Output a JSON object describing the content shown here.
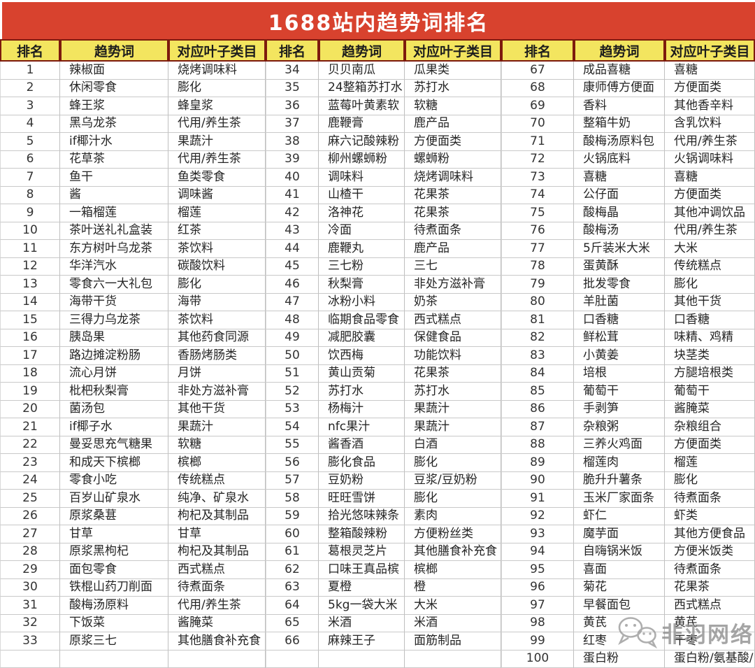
{
  "title": "1688站内趋势词排名",
  "watermark": "非羽网络",
  "colors": {
    "banner_red": "#d8422e",
    "header_yellow": "#f3e55f",
    "header_border": "#7d1a0d",
    "grid_line": "#c9c9c9"
  },
  "table": {
    "header": {
      "rank": "排名",
      "word": "趋势词",
      "category": "对应叶子类目"
    },
    "row_count": 34,
    "groups": [
      {
        "rows": [
          {
            "rank": "1",
            "word": "辣椒面",
            "category": "烧烤调味料"
          },
          {
            "rank": "2",
            "word": "休闲零食",
            "category": "膨化"
          },
          {
            "rank": "3",
            "word": "蜂王浆",
            "category": "蜂皇浆"
          },
          {
            "rank": "4",
            "word": "黑乌龙茶",
            "category": "代用/养生茶"
          },
          {
            "rank": "5",
            "word": "if椰汁水",
            "category": "果蔬汁"
          },
          {
            "rank": "6",
            "word": "花草茶",
            "category": "代用/养生茶"
          },
          {
            "rank": "7",
            "word": "鱼干",
            "category": "鱼类零食"
          },
          {
            "rank": "8",
            "word": "酱",
            "category": "调味酱"
          },
          {
            "rank": "9",
            "word": "一箱榴莲",
            "category": "榴莲"
          },
          {
            "rank": "10",
            "word": "茶叶送礼礼盒装",
            "category": "红茶"
          },
          {
            "rank": "11",
            "word": "东方树叶乌龙茶",
            "category": "茶饮料"
          },
          {
            "rank": "12",
            "word": "华洋汽水",
            "category": "碳酸饮料"
          },
          {
            "rank": "13",
            "word": "零食六一大礼包",
            "category": "膨化"
          },
          {
            "rank": "14",
            "word": "海带干货",
            "category": "海带"
          },
          {
            "rank": "15",
            "word": "三得力乌龙茶",
            "category": "茶饮料"
          },
          {
            "rank": "16",
            "word": "胰岛果",
            "category": "其他药食同源"
          },
          {
            "rank": "17",
            "word": "路边摊淀粉肠",
            "category": "香肠烤肠类"
          },
          {
            "rank": "18",
            "word": "流心月饼",
            "category": "月饼"
          },
          {
            "rank": "19",
            "word": "枇杷秋梨膏",
            "category": "非处方滋补膏"
          },
          {
            "rank": "20",
            "word": "菌汤包",
            "category": "其他干货"
          },
          {
            "rank": "21",
            "word": "if椰子水",
            "category": "果蔬汁"
          },
          {
            "rank": "22",
            "word": "曼妥思充气糖果",
            "category": "软糖"
          },
          {
            "rank": "23",
            "word": "和成天下槟榔",
            "category": "槟榔"
          },
          {
            "rank": "24",
            "word": "零食小吃",
            "category": "传统糕点"
          },
          {
            "rank": "25",
            "word": "百岁山矿泉水",
            "category": "纯净、矿泉水"
          },
          {
            "rank": "26",
            "word": "原浆桑葚",
            "category": "枸杞及其制品"
          },
          {
            "rank": "27",
            "word": "甘草",
            "category": "甘草"
          },
          {
            "rank": "28",
            "word": "原浆黑枸杞",
            "category": "枸杞及其制品"
          },
          {
            "rank": "29",
            "word": "面包零食",
            "category": "西式糕点"
          },
          {
            "rank": "30",
            "word": "铁棍山药刀削面",
            "category": "待煮面条"
          },
          {
            "rank": "31",
            "word": "酸梅汤原料",
            "category": "代用/养生茶"
          },
          {
            "rank": "32",
            "word": "下饭菜",
            "category": "酱腌菜"
          },
          {
            "rank": "33",
            "word": "原浆三七",
            "category": "其他膳食补充食"
          }
        ]
      },
      {
        "rows": [
          {
            "rank": "34",
            "word": "贝贝南瓜",
            "category": "瓜果类"
          },
          {
            "rank": "35",
            "word": "24整箱苏打水",
            "category": "苏打水"
          },
          {
            "rank": "36",
            "word": "蓝莓叶黄素软",
            "category": "软糖"
          },
          {
            "rank": "37",
            "word": "鹿鞭膏",
            "category": "鹿产品"
          },
          {
            "rank": "38",
            "word": "麻六记酸辣粉",
            "category": "方便面类"
          },
          {
            "rank": "39",
            "word": "柳州螺蛳粉",
            "category": "螺蛳粉"
          },
          {
            "rank": "40",
            "word": "调味料",
            "category": "烧烤调味料"
          },
          {
            "rank": "41",
            "word": "山楂干",
            "category": "花果茶"
          },
          {
            "rank": "42",
            "word": "洛神花",
            "category": "花果茶"
          },
          {
            "rank": "43",
            "word": "冷面",
            "category": "待煮面条"
          },
          {
            "rank": "44",
            "word": "鹿鞭丸",
            "category": "鹿产品"
          },
          {
            "rank": "45",
            "word": "三七粉",
            "category": "三七"
          },
          {
            "rank": "46",
            "word": "秋梨膏",
            "category": "非处方滋补膏"
          },
          {
            "rank": "47",
            "word": "冰粉小料",
            "category": "奶茶"
          },
          {
            "rank": "48",
            "word": "临期食品零食",
            "category": "西式糕点"
          },
          {
            "rank": "49",
            "word": "减肥胶囊",
            "category": "保健食品"
          },
          {
            "rank": "50",
            "word": "饮西梅",
            "category": "功能饮料"
          },
          {
            "rank": "51",
            "word": "黄山贡菊",
            "category": "花果茶"
          },
          {
            "rank": "52",
            "word": "苏打水",
            "category": "苏打水"
          },
          {
            "rank": "53",
            "word": "杨梅汁",
            "category": "果蔬汁"
          },
          {
            "rank": "54",
            "word": "nfc果汁",
            "category": "果蔬汁"
          },
          {
            "rank": "55",
            "word": "酱香酒",
            "category": "白酒"
          },
          {
            "rank": "56",
            "word": "膨化食品",
            "category": "膨化"
          },
          {
            "rank": "57",
            "word": "豆奶粉",
            "category": "豆浆/豆奶粉"
          },
          {
            "rank": "58",
            "word": "旺旺雪饼",
            "category": "膨化"
          },
          {
            "rank": "59",
            "word": "拾光悠味辣条",
            "category": "素肉"
          },
          {
            "rank": "60",
            "word": "整箱酸辣粉",
            "category": "方便粉丝类"
          },
          {
            "rank": "61",
            "word": "葛根灵芝片",
            "category": "其他膳食补充食"
          },
          {
            "rank": "62",
            "word": "口味王真品槟",
            "category": "槟榔"
          },
          {
            "rank": "63",
            "word": "夏橙",
            "category": "橙"
          },
          {
            "rank": "64",
            "word": "5kg一袋大米",
            "category": "大米"
          },
          {
            "rank": "65",
            "word": "米酒",
            "category": "米酒"
          },
          {
            "rank": "66",
            "word": "麻辣王子",
            "category": "面筋制品"
          }
        ]
      },
      {
        "rows": [
          {
            "rank": "67",
            "word": "成品喜糖",
            "category": "喜糖"
          },
          {
            "rank": "68",
            "word": "康师傅方便面",
            "category": "方便面类"
          },
          {
            "rank": "69",
            "word": "香料",
            "category": "其他香辛料"
          },
          {
            "rank": "70",
            "word": "整箱牛奶",
            "category": "含乳饮料"
          },
          {
            "rank": "71",
            "word": "酸梅汤原料包",
            "category": "代用/养生茶"
          },
          {
            "rank": "72",
            "word": "火锅底料",
            "category": "火锅调味料"
          },
          {
            "rank": "73",
            "word": "喜糖",
            "category": "喜糖"
          },
          {
            "rank": "74",
            "word": "公仔面",
            "category": "方便面类"
          },
          {
            "rank": "75",
            "word": "酸梅晶",
            "category": "其他冲调饮品"
          },
          {
            "rank": "76",
            "word": "酸梅汤",
            "category": "代用/养生茶"
          },
          {
            "rank": "77",
            "word": "5斤装米大米",
            "category": "大米"
          },
          {
            "rank": "78",
            "word": "蛋黄酥",
            "category": "传统糕点"
          },
          {
            "rank": "79",
            "word": "批发零食",
            "category": "膨化"
          },
          {
            "rank": "80",
            "word": "羊肚菌",
            "category": "其他干货"
          },
          {
            "rank": "81",
            "word": "口香糖",
            "category": "口香糖"
          },
          {
            "rank": "82",
            "word": "鲜松茸",
            "category": "味精、鸡精"
          },
          {
            "rank": "83",
            "word": "小黄姜",
            "category": "块茎类"
          },
          {
            "rank": "84",
            "word": "培根",
            "category": "方腿培根类"
          },
          {
            "rank": "85",
            "word": "葡萄干",
            "category": "葡萄干"
          },
          {
            "rank": "86",
            "word": "手剥笋",
            "category": "酱腌菜"
          },
          {
            "rank": "87",
            "word": "杂粮粥",
            "category": "杂粮组合"
          },
          {
            "rank": "88",
            "word": "三养火鸡面",
            "category": "方便面类"
          },
          {
            "rank": "89",
            "word": "榴莲肉",
            "category": "榴莲"
          },
          {
            "rank": "90",
            "word": "脆升升薯条",
            "category": "膨化"
          },
          {
            "rank": "91",
            "word": "玉米厂家面条",
            "category": "待煮面条"
          },
          {
            "rank": "92",
            "word": "虾仁",
            "category": "虾类"
          },
          {
            "rank": "93",
            "word": "魔芋面",
            "category": "其他方便食品"
          },
          {
            "rank": "94",
            "word": "自嗨锅米饭",
            "category": "方便米饭类"
          },
          {
            "rank": "95",
            "word": "喜面",
            "category": "待煮面条"
          },
          {
            "rank": "96",
            "word": "菊花",
            "category": "花果茶"
          },
          {
            "rank": "97",
            "word": "早餐面包",
            "category": "西式糕点"
          },
          {
            "rank": "98",
            "word": "黄芪",
            "category": "黄芪"
          },
          {
            "rank": "99",
            "word": "红枣",
            "category": "干枣"
          },
          {
            "rank": "100",
            "word": "蛋白粉",
            "category": "蛋白粉/氨基酸/"
          }
        ]
      }
    ]
  }
}
